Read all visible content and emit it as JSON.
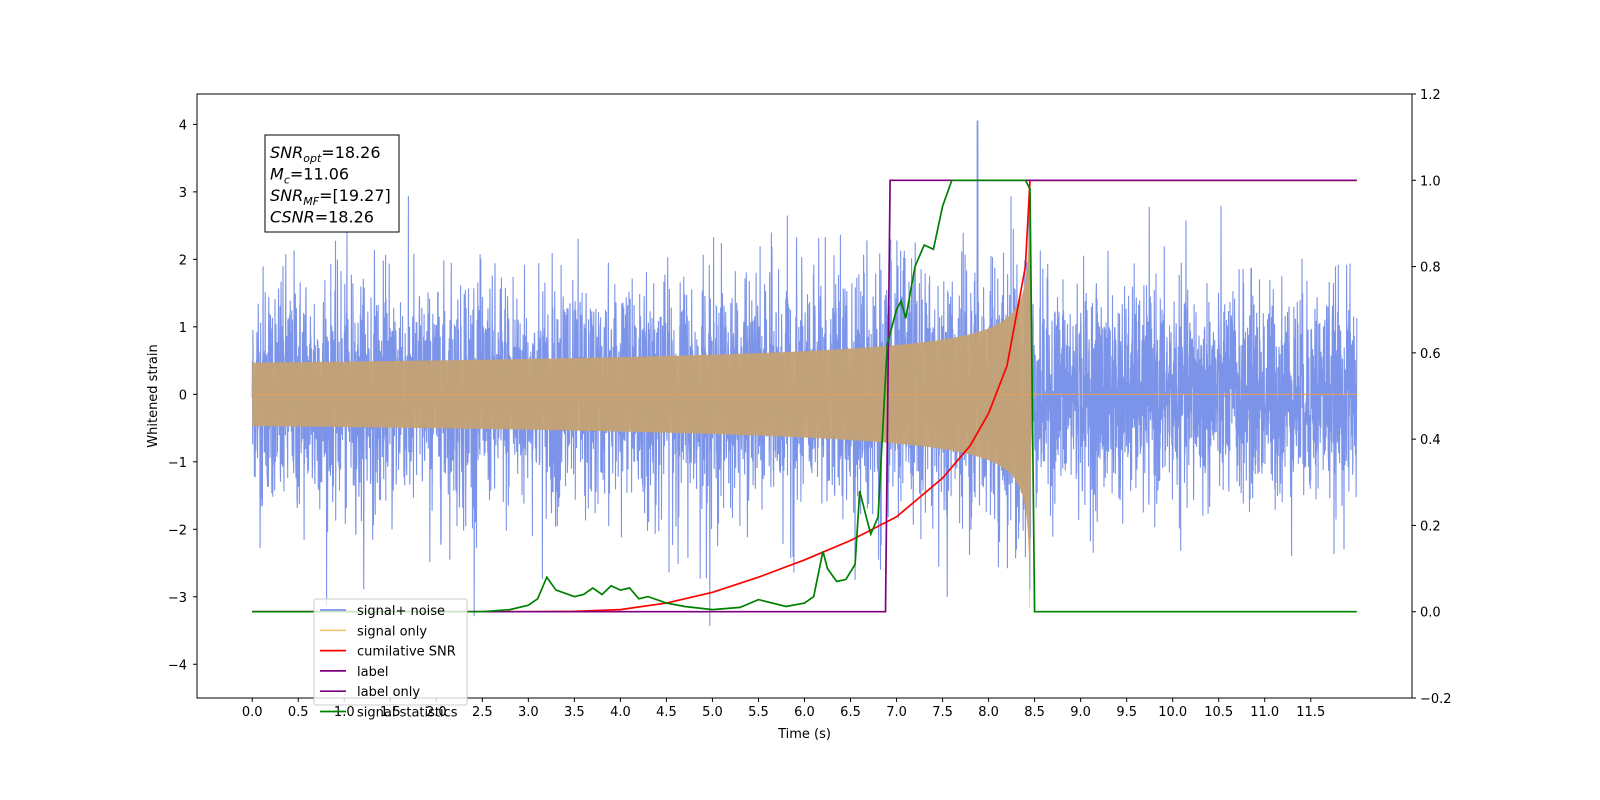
{
  "chart_data": {
    "type": "line",
    "xlabel": "Time (s)",
    "ylabel": "Whitened strain",
    "xlim": [
      -0.6,
      12.6
    ],
    "ylim_left": [
      -4.5,
      4.45
    ],
    "ylim_right": [
      -0.2,
      1.2
    ],
    "x_ticks": [
      0.0,
      0.5,
      1.0,
      1.5,
      2.0,
      2.5,
      3.0,
      3.5,
      4.0,
      4.5,
      5.0,
      5.5,
      6.0,
      6.5,
      7.0,
      7.5,
      8.0,
      8.5,
      9.0,
      9.5,
      10.0,
      10.5,
      11.0,
      11.5
    ],
    "x_tick_labels": [
      "0.0",
      "0.5",
      "1.0",
      "1.5",
      "2.0",
      "2.5",
      "3.0",
      "3.5",
      "4.0",
      "4.5",
      "5.0",
      "5.5",
      "6.0",
      "6.5",
      "7.0",
      "7.5",
      "8.0",
      "8.5",
      "9.0",
      "9.5",
      "10.0",
      "10.5",
      "11.0",
      "11.5"
    ],
    "y_left_ticks": [
      -4,
      -3,
      -2,
      -1,
      0,
      1,
      2,
      3,
      4
    ],
    "y_left_tick_labels": [
      "−4",
      "−3",
      "−2",
      "−1",
      "0",
      "1",
      "2",
      "3",
      "4"
    ],
    "y_right_ticks": [
      -0.2,
      0.0,
      0.2,
      0.4,
      0.6,
      0.8,
      1.0,
      1.2
    ],
    "y_right_tick_labels": [
      "−0.2",
      "0.0",
      "0.2",
      "0.4",
      "0.6",
      "0.8",
      "1.0",
      "1.2"
    ],
    "legend_placement": "lower-left",
    "grid": false,
    "annotation": {
      "lines": [
        {
          "sym": "SNR",
          "sub": "opt",
          "value": "=18.26"
        },
        {
          "sym": "M",
          "sub": "c",
          "value": "=11.06"
        },
        {
          "sym": "SNR",
          "sub": "MF",
          "value": "=[19.27]"
        },
        {
          "sym": "CSNR",
          "sub": "",
          "value": "=18.26"
        }
      ]
    },
    "series": [
      {
        "name": "signal+ noise",
        "color": "#7b93e8",
        "axis": "left",
        "x_range": [
          0.0,
          12.0
        ],
        "amplitude_typical": 1.7,
        "amplitude_peak": 4.05,
        "peak_x": 7.88
      },
      {
        "name": "signal only",
        "color": "#f5c37a",
        "axis": "left",
        "x_range": [
          0.0,
          12.0
        ],
        "merger_x": 8.45,
        "merger_amplitude": 3.25
      },
      {
        "name": "cumilative SNR",
        "color": "#ff0000",
        "axis": "right",
        "x": [
          0.0,
          3.0,
          3.5,
          4.0,
          4.5,
          5.0,
          5.5,
          6.0,
          6.5,
          7.0,
          7.5,
          7.8,
          8.0,
          8.2,
          8.4,
          8.45,
          8.5,
          12.0
        ],
        "values": [
          0.0,
          0.0,
          0.001,
          0.005,
          0.02,
          0.045,
          0.08,
          0.12,
          0.165,
          0.22,
          0.31,
          0.385,
          0.46,
          0.57,
          0.8,
          1.0,
          1.0,
          1.0
        ]
      },
      {
        "name": "label",
        "color": "#7f007f",
        "axis": "right",
        "x": [
          0.0,
          6.88,
          6.93,
          8.45,
          8.5,
          8.52,
          12.0
        ],
        "values": [
          0.0,
          0.0,
          1.0,
          1.0,
          1.0,
          1.0,
          1.0
        ]
      },
      {
        "name": "label only",
        "color": "#7f007f",
        "axis": "right",
        "hidden_in_plot": true,
        "x": [],
        "values": []
      },
      {
        "name": "signal statistics",
        "color": "#008000",
        "axis": "right",
        "x": [
          0.0,
          2.5,
          2.8,
          3.0,
          3.1,
          3.2,
          3.3,
          3.5,
          3.6,
          3.7,
          3.8,
          3.9,
          4.0,
          4.1,
          4.2,
          4.3,
          4.5,
          4.7,
          5.0,
          5.3,
          5.5,
          5.8,
          6.0,
          6.1,
          6.2,
          6.25,
          6.35,
          6.45,
          6.55,
          6.6,
          6.67,
          6.72,
          6.8,
          6.9,
          7.0,
          7.05,
          7.1,
          7.2,
          7.3,
          7.4,
          7.5,
          7.6,
          7.7,
          8.0,
          8.4,
          8.45,
          8.5,
          12.0
        ],
        "values": [
          0.0,
          0.0,
          0.005,
          0.015,
          0.03,
          0.08,
          0.05,
          0.035,
          0.04,
          0.055,
          0.04,
          0.06,
          0.05,
          0.055,
          0.03,
          0.035,
          0.02,
          0.012,
          0.005,
          0.01,
          0.028,
          0.012,
          0.02,
          0.035,
          0.14,
          0.1,
          0.07,
          0.075,
          0.11,
          0.28,
          0.22,
          0.18,
          0.22,
          0.62,
          0.7,
          0.72,
          0.68,
          0.8,
          0.85,
          0.84,
          0.94,
          1.0,
          1.0,
          1.0,
          1.0,
          0.98,
          0.0,
          0.0
        ]
      }
    ]
  }
}
